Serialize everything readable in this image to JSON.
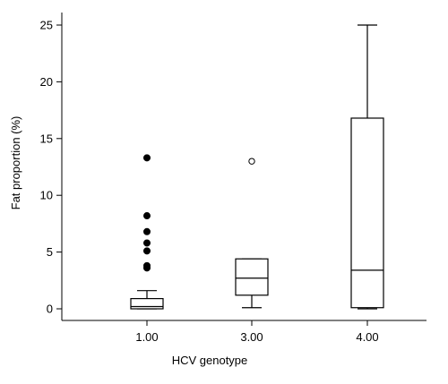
{
  "chart_data": {
    "type": "boxplot",
    "title": "",
    "xlabel": "HCV genotype",
    "ylabel": "Fat proportion (%)",
    "ylim": [
      0,
      25
    ],
    "yticks": [
      0,
      5,
      10,
      15,
      20,
      25
    ],
    "grid": false,
    "categories": [
      "1.00",
      "3.00",
      "4.00"
    ],
    "boxes": [
      {
        "category": "1.00",
        "whisker_low": 0,
        "q1": 0,
        "median": 0.2,
        "q3": 0.9,
        "whisker_high": 1.6,
        "outliers": [],
        "extremes": [
          3.6,
          3.8,
          5.1,
          5.8,
          6.8,
          8.2,
          13.3
        ]
      },
      {
        "category": "3.00",
        "whisker_low": 0.1,
        "q1": 1.2,
        "median": 2.7,
        "q3": 4.4,
        "whisker_high": 4.4,
        "outliers": [
          13.0
        ],
        "extremes": []
      },
      {
        "category": "4.00",
        "whisker_low": 0,
        "q1": 0.1,
        "median": 3.4,
        "q3": 16.8,
        "whisker_high": 25.0,
        "outliers": [],
        "extremes": []
      }
    ]
  }
}
